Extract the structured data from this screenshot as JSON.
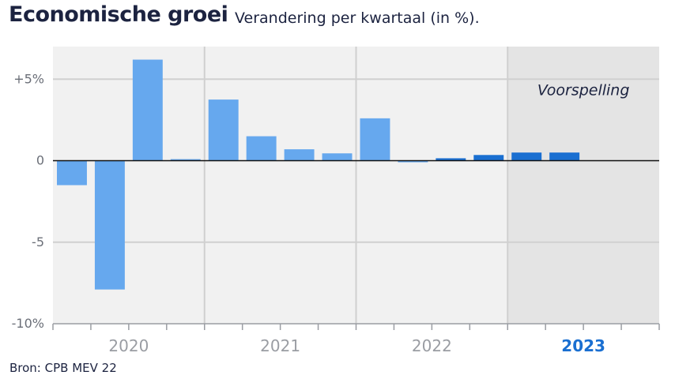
{
  "chart_data": {
    "type": "bar",
    "title": "Economische groei",
    "subtitle": "Verandering per kwartaal (in %).",
    "source": "Bron: CPB MEV 22",
    "ylim": [
      -10,
      7
    ],
    "yticks": [
      {
        "value": 5,
        "label": "+5%"
      },
      {
        "value": 0,
        "label": "0"
      },
      {
        "value": -5,
        "label": "-5"
      },
      {
        "value": -10,
        "label": "-10%"
      }
    ],
    "years": [
      "2020",
      "2021",
      "2022",
      "2023"
    ],
    "highlight_year": "2023",
    "forecast_label": "Voorspelling",
    "forecast_from_year": "2023",
    "grid": true,
    "colors": {
      "actual": "#66a8ee",
      "forecast": "#1a6fd1",
      "plot_bg": "#f1f1f1",
      "forecast_bg": "#e4e4e4",
      "grid": "#d0d0d0",
      "zero_line": "#111111"
    },
    "series": [
      {
        "values": [
          -1.5,
          -7.9,
          6.2,
          0.05,
          3.75,
          1.5,
          0.7,
          0.45,
          2.6,
          -0.05,
          0.15,
          0.35,
          0.5,
          0.5
        ],
        "forecast": [
          false,
          false,
          false,
          false,
          false,
          false,
          false,
          false,
          false,
          false,
          true,
          true,
          true,
          true
        ]
      }
    ]
  }
}
